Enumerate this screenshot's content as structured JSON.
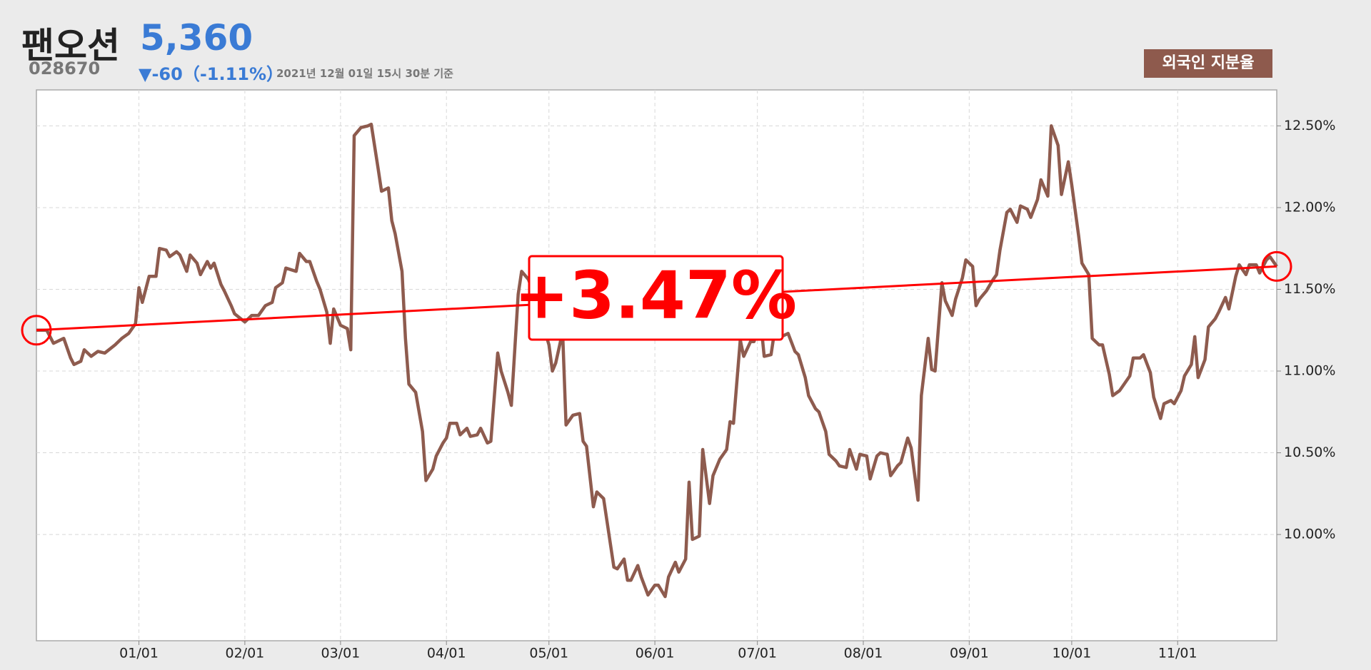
{
  "header": {
    "name": "팬오션",
    "price": "5,360",
    "code": "028670",
    "change": "▼-60（-1.11%）",
    "timestamp": "2021년 12월 01일 15시 30분 기준",
    "button": "외국인 지분율"
  },
  "chart_data": {
    "type": "line",
    "color": "#8e5b4e",
    "annotation": "+3.47%",
    "trend_color": "#ff0000",
    "grid": true,
    "xlim": [
      "12/02",
      "11/30"
    ],
    "xticks": [
      "01/01",
      "02/01",
      "03/01",
      "04/01",
      "05/01",
      "06/01",
      "07/01",
      "08/01",
      "09/01",
      "10/01",
      "11/01"
    ],
    "ylim": [
      9.35,
      12.72
    ],
    "yticks": [
      {
        "value": 10,
        "label": "10.00%"
      },
      {
        "value": 10.5,
        "label": "10.50%"
      },
      {
        "value": 11,
        "label": "11.00%"
      },
      {
        "value": 11.5,
        "label": "11.50%"
      },
      {
        "value": 12,
        "label": "12.00%"
      },
      {
        "value": 12.5,
        "label": "12.50%"
      }
    ],
    "x": [
      "12/02",
      "12/05",
      "12/07",
      "12/10",
      "12/12",
      "12/13",
      "12/15",
      "12/16",
      "12/18",
      "12/20",
      "12/22",
      "12/25",
      "12/27",
      "12/29",
      "12/31",
      "01/01",
      "01/02",
      "01/04",
      "01/06",
      "01/07",
      "01/09",
      "01/10",
      "01/12",
      "01/13",
      "01/15",
      "01/16",
      "01/18",
      "01/19",
      "01/21",
      "01/22",
      "01/23",
      "01/25",
      "01/26",
      "01/28",
      "01/29",
      "02/01",
      "02/03",
      "02/05",
      "02/07",
      "02/09",
      "02/10",
      "02/12",
      "02/13",
      "02/16",
      "02/17",
      "02/19",
      "02/20",
      "02/22",
      "02/23",
      "02/25",
      "02/26",
      "02/27",
      "03/01",
      "03/03",
      "03/04",
      "03/05",
      "03/07",
      "03/09",
      "03/10",
      "03/12",
      "03/13",
      "03/15",
      "03/16",
      "03/17",
      "03/19",
      "03/20",
      "03/21",
      "03/23",
      "03/25",
      "03/26",
      "03/28",
      "03/29",
      "03/31",
      "04/01",
      "04/02",
      "04/04",
      "04/05",
      "04/07",
      "04/08",
      "04/10",
      "04/11",
      "04/13",
      "04/14",
      "04/16",
      "04/17",
      "04/19",
      "04/20",
      "04/22",
      "04/23",
      "04/25",
      "04/27",
      "04/29",
      "05/01",
      "05/02",
      "05/03",
      "05/05",
      "05/06",
      "05/08",
      "05/10",
      "05/11",
      "05/12",
      "05/14",
      "05/15",
      "05/17",
      "05/18",
      "05/20",
      "05/21",
      "05/23",
      "05/24",
      "05/25",
      "05/27",
      "05/28",
      "05/30",
      "06/01",
      "06/02",
      "06/04",
      "06/05",
      "06/07",
      "06/08",
      "06/10",
      "06/11",
      "06/12",
      "06/14",
      "06/15",
      "06/17",
      "06/18",
      "06/20",
      "06/22",
      "06/23",
      "06/24",
      "06/26",
      "06/27",
      "06/29",
      "06/30",
      "07/02",
      "07/03",
      "07/05",
      "07/06",
      "07/08",
      "07/09",
      "07/10",
      "07/12",
      "07/13",
      "07/15",
      "07/16",
      "07/18",
      "07/19",
      "07/21",
      "07/22",
      "07/24",
      "07/25",
      "07/27",
      "07/28",
      "07/30",
      "07/31",
      "08/02",
      "08/03",
      "08/05",
      "08/06",
      "08/08",
      "08/09",
      "08/11",
      "08/12",
      "08/14",
      "08/15",
      "08/17",
      "08/18",
      "08/20",
      "08/21",
      "08/22",
      "08/24",
      "08/25",
      "08/27",
      "08/28",
      "08/30",
      "08/31",
      "09/02",
      "09/03",
      "09/04",
      "09/06",
      "09/08",
      "09/09",
      "09/10",
      "09/12",
      "09/13",
      "09/15",
      "09/16",
      "09/18",
      "09/19",
      "09/21",
      "09/22",
      "09/24",
      "09/25",
      "09/27",
      "09/28",
      "09/30",
      "10/01",
      "10/03",
      "10/04",
      "10/06",
      "10/07",
      "10/09",
      "10/10",
      "10/12",
      "10/13",
      "10/15",
      "10/16",
      "10/18",
      "10/19",
      "10/21",
      "10/22",
      "10/24",
      "10/25",
      "10/27",
      "10/28",
      "10/30",
      "10/31",
      "11/02",
      "11/03",
      "11/05",
      "11/06",
      "11/07",
      "11/09",
      "11/10",
      "11/12",
      "11/13",
      "11/15",
      "11/16",
      "11/18",
      "11/19",
      "11/21",
      "11/22",
      "11/24",
      "11/25",
      "11/27",
      "11/28",
      "11/30"
    ],
    "values": [
      11.25,
      11.25,
      11.17,
      11.2,
      11.08,
      11.04,
      11.06,
      11.13,
      11.09,
      11.12,
      11.11,
      11.16,
      11.2,
      11.23,
      11.29,
      11.51,
      11.42,
      11.58,
      11.58,
      11.75,
      11.74,
      11.7,
      11.73,
      11.71,
      11.61,
      11.71,
      11.66,
      11.59,
      11.67,
      11.63,
      11.66,
      11.53,
      11.49,
      11.4,
      11.35,
      11.3,
      11.34,
      11.34,
      11.4,
      11.42,
      11.51,
      11.54,
      11.63,
      11.61,
      11.72,
      11.67,
      11.67,
      11.55,
      11.5,
      11.36,
      11.17,
      11.38,
      11.28,
      11.26,
      11.13,
      12.44,
      12.49,
      12.5,
      12.51,
      12.24,
      12.1,
      12.12,
      11.92,
      11.84,
      11.61,
      11.2,
      10.92,
      10.87,
      10.63,
      10.33,
      10.4,
      10.48,
      10.56,
      10.59,
      10.68,
      10.68,
      10.61,
      10.65,
      10.6,
      10.61,
      10.65,
      10.56,
      10.57,
      11.11,
      11.0,
      10.87,
      10.79,
      11.47,
      11.61,
      11.56,
      11.45,
      11.3,
      11.16,
      11.0,
      11.05,
      11.24,
      10.67,
      10.73,
      10.74,
      10.57,
      10.54,
      10.17,
      10.26,
      10.22,
      10.08,
      9.8,
      9.79,
      9.85,
      9.72,
      9.72,
      9.81,
      9.74,
      9.63,
      9.69,
      9.69,
      9.62,
      9.74,
      9.83,
      9.77,
      9.85,
      10.32,
      9.97,
      9.99,
      10.52,
      10.19,
      10.36,
      10.46,
      10.52,
      10.69,
      10.68,
      11.19,
      11.09,
      11.18,
      11.18,
      11.3,
      11.09,
      11.1,
      11.24,
      11.21,
      11.22,
      11.23,
      11.12,
      11.1,
      10.96,
      10.85,
      10.77,
      10.75,
      10.63,
      10.49,
      10.45,
      10.42,
      10.41,
      10.52,
      10.4,
      10.49,
      10.48,
      10.34,
      10.48,
      10.5,
      10.49,
      10.36,
      10.42,
      10.44,
      10.59,
      10.53,
      10.21,
      10.85,
      11.2,
      11.01,
      11.0,
      11.54,
      11.43,
      11.34,
      11.44,
      11.57,
      11.68,
      11.64,
      11.4,
      11.44,
      11.49,
      11.56,
      11.59,
      11.74,
      11.97,
      11.99,
      11.91,
      12.01,
      11.99,
      11.94,
      12.05,
      12.17,
      12.07,
      12.5,
      12.38,
      12.08,
      12.28,
      12.14,
      11.83,
      11.66,
      11.59,
      11.2,
      11.16,
      11.16,
      10.98,
      10.85,
      10.88,
      10.91,
      10.97,
      11.08,
      11.08,
      11.1,
      10.99,
      10.84,
      10.71,
      10.8,
      10.82,
      10.8,
      10.88,
      10.97,
      11.04,
      11.21,
      10.96,
      11.07,
      11.27,
      11.32,
      11.36,
      11.45,
      11.38,
      11.58,
      11.65,
      11.59,
      11.65,
      11.65,
      11.6,
      11.68,
      11.7,
      11.64
    ]
  }
}
